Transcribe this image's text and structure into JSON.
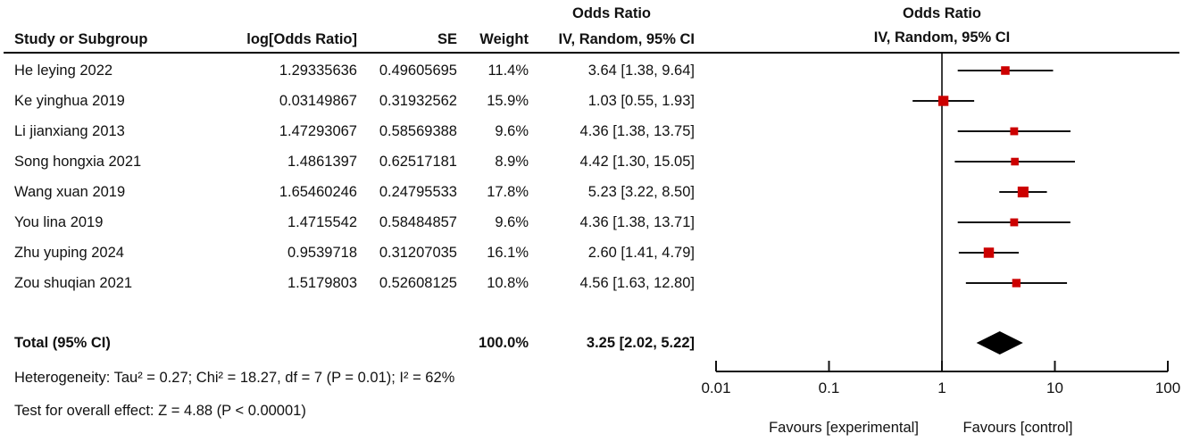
{
  "header": {
    "or_label_left": "Odds Ratio",
    "or_label_right": "Odds Ratio",
    "method_label_right": "IV, Random, 95% CI",
    "col_study": "Study or Subgroup",
    "col_logor": "log[Odds Ratio]",
    "col_se": "SE",
    "col_weight": "Weight",
    "col_ci": "IV, Random, 95% CI"
  },
  "table": {
    "rows": [
      {
        "study": "He leying 2022",
        "logor": "1.29335636",
        "se": "0.49605695",
        "weight": "11.4%",
        "ci": "3.64 [1.38, 9.64]"
      },
      {
        "study": "Ke yinghua 2019",
        "logor": "0.03149867",
        "se": "0.31932562",
        "weight": "15.9%",
        "ci": "1.03 [0.55, 1.93]"
      },
      {
        "study": "Li jianxiang 2013",
        "logor": "1.47293067",
        "se": "0.58569388",
        "weight": "9.6%",
        "ci": "4.36 [1.38, 13.75]"
      },
      {
        "study": "Song hongxia 2021",
        "logor": "1.4861397",
        "se": "0.62517181",
        "weight": "8.9%",
        "ci": "4.42 [1.30, 15.05]"
      },
      {
        "study": "Wang xuan 2019",
        "logor": "1.65460246",
        "se": "0.24795533",
        "weight": "17.8%",
        "ci": "5.23 [3.22, 8.50]"
      },
      {
        "study": "You lina 2019",
        "logor": "1.4715542",
        "se": "0.58484857",
        "weight": "9.6%",
        "ci": "4.36 [1.38, 13.71]"
      },
      {
        "study": "Zhu yuping 2024",
        "logor": "0.9539718",
        "se": "0.31207035",
        "weight": "16.1%",
        "ci": "2.60 [1.41, 4.79]"
      },
      {
        "study": "Zou shuqian 2021",
        "logor": "1.5179803",
        "se": "0.52608125",
        "weight": "10.8%",
        "ci": "4.56 [1.63, 12.80]"
      }
    ],
    "total": {
      "label": "Total (95% CI)",
      "weight": "100.0%",
      "ci": "3.25 [2.02, 5.22]"
    },
    "heterogeneity": "Heterogeneity: Tau² = 0.27; Chi² = 18.27, df = 7 (P = 0.01); I² = 62%",
    "overall_effect": "Test for overall effect: Z = 4.88 (P < 0.00001)"
  },
  "chart_data": {
    "type": "scatter",
    "subtype": "forest-plot",
    "scale": "log10",
    "axis_range": [
      0.01,
      100
    ],
    "null_line": 1,
    "ticks": [
      {
        "v": 0.01,
        "label": "0.01"
      },
      {
        "v": 0.1,
        "label": "0.1"
      },
      {
        "v": 1,
        "label": "1"
      },
      {
        "v": 10,
        "label": "10"
      },
      {
        "v": 100,
        "label": "100"
      }
    ],
    "studies": [
      {
        "name": "He leying 2022",
        "or": 3.64,
        "lo": 1.38,
        "hi": 9.64,
        "weight_pct": 11.4
      },
      {
        "name": "Ke yinghua 2019",
        "or": 1.03,
        "lo": 0.55,
        "hi": 1.93,
        "weight_pct": 15.9
      },
      {
        "name": "Li jianxiang 2013",
        "or": 4.36,
        "lo": 1.38,
        "hi": 13.75,
        "weight_pct": 9.6
      },
      {
        "name": "Song hongxia 2021",
        "or": 4.42,
        "lo": 1.3,
        "hi": 15.05,
        "weight_pct": 8.9
      },
      {
        "name": "Wang xuan 2019",
        "or": 5.23,
        "lo": 3.22,
        "hi": 8.5,
        "weight_pct": 17.8
      },
      {
        "name": "You lina 2019",
        "or": 4.36,
        "lo": 1.38,
        "hi": 13.71,
        "weight_pct": 9.6
      },
      {
        "name": "Zhu yuping 2024",
        "or": 2.6,
        "lo": 1.41,
        "hi": 4.79,
        "weight_pct": 16.1
      },
      {
        "name": "Zou shuqian 2021",
        "or": 4.56,
        "lo": 1.63,
        "hi": 12.8,
        "weight_pct": 10.8
      }
    ],
    "total": {
      "or": 3.25,
      "lo": 2.02,
      "hi": 5.22
    },
    "favours_left": "Favours [experimental]",
    "favours_right": "Favours [control]",
    "marker_color": "#CC0000",
    "diamond_color": "#000000",
    "line_color": "#111111"
  }
}
